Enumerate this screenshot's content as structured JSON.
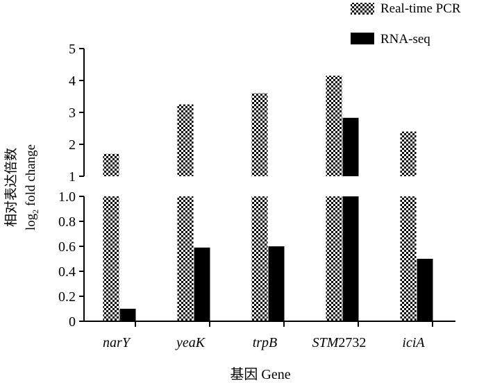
{
  "chart_data": {
    "type": "bar",
    "categories": [
      "narY",
      "yeaK",
      "trpB",
      "STM2732",
      "iciA"
    ],
    "category_labels": [
      {
        "italic": "narY",
        "plain": ""
      },
      {
        "italic": "yeaK",
        "plain": ""
      },
      {
        "italic": "trpB",
        "plain": ""
      },
      {
        "italic": "STM",
        "plain": "2732"
      },
      {
        "italic": "iciA",
        "plain": ""
      }
    ],
    "series": [
      {
        "name": "Real-time PCR",
        "values": [
          1.7,
          3.25,
          3.6,
          4.15,
          2.4
        ],
        "pattern": "checker",
        "color": "#000000"
      },
      {
        "name": "RNA-seq",
        "values": [
          0.1,
          0.59,
          0.6,
          2.83,
          0.5
        ],
        "pattern": "solid",
        "color": "#000000"
      }
    ],
    "xlabel": "基因 Gene",
    "ylabel_cn": "相对表达倍数",
    "ylabel_log": "log",
    "ylabel_sub": "2",
    "ylabel_rest": " fold change",
    "y_axis_break": true,
    "lower_segment": {
      "range": [
        0,
        1.0
      ],
      "ticks": [
        "0",
        "0.2",
        "0.4",
        "0.6",
        "0.8",
        "1.0"
      ]
    },
    "upper_segment": {
      "range": [
        1,
        5
      ],
      "ticks": [
        "1",
        "2",
        "3",
        "4",
        "5"
      ]
    },
    "legend_position": "top-right",
    "grid": false
  }
}
